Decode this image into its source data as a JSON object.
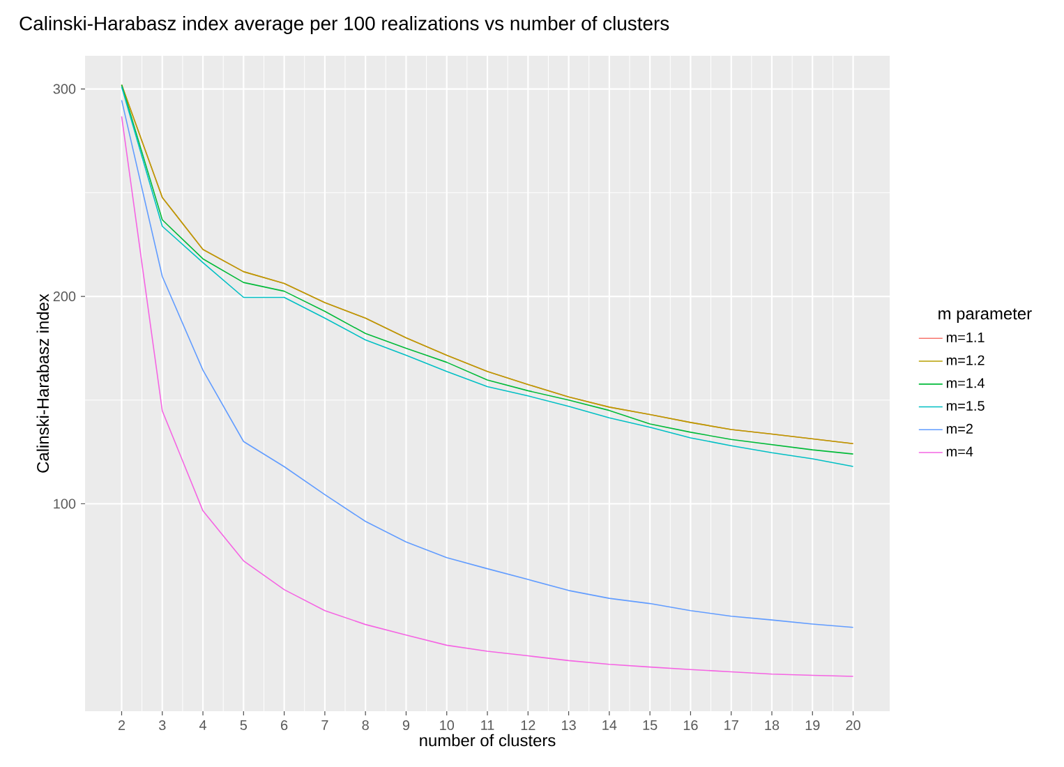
{
  "chart_data": {
    "type": "line",
    "title": "Calinski-Harabasz index average per 100 realizations vs number of clusters",
    "xlabel": "number of clusters",
    "ylabel": "Calinski-Harabasz index",
    "legend_title": "m parameter",
    "x": [
      2,
      3,
      4,
      5,
      6,
      7,
      8,
      9,
      10,
      11,
      12,
      13,
      14,
      15,
      16,
      17,
      18,
      19,
      20
    ],
    "series": [
      {
        "name": "m=1.1",
        "color": "#f8766d",
        "values": [
          302,
          247.7,
          222.6,
          211.9,
          206.2,
          197,
          189.5,
          180,
          171.6,
          163.8,
          157.5,
          151.5,
          146.6,
          143,
          139.2,
          135.8,
          133.6,
          131.3,
          129
        ]
      },
      {
        "name": "m=1.2",
        "color": "#b79f00",
        "values": [
          302,
          247.7,
          222.6,
          211.9,
          206.2,
          197,
          189.5,
          180,
          171.6,
          163.8,
          157.5,
          151.5,
          146.6,
          143,
          139.2,
          135.8,
          133.6,
          131.3,
          129
        ]
      },
      {
        "name": "m=1.4",
        "color": "#00ba38",
        "values": [
          302,
          236.9,
          218.1,
          206.7,
          202.5,
          192.8,
          182.1,
          175,
          168.2,
          159.7,
          154.5,
          150,
          145,
          138.5,
          134.5,
          131,
          128.5,
          126,
          124
        ]
      },
      {
        "name": "m=1.5",
        "color": "#00bfc4",
        "values": [
          301,
          233.8,
          216.3,
          199.5,
          199.5,
          189.5,
          179,
          171.6,
          163.8,
          156.5,
          152,
          147,
          141.4,
          136.9,
          131.8,
          128,
          124.6,
          121.7,
          118
        ]
      },
      {
        "name": "m=2",
        "color": "#619cff",
        "values": [
          294.6,
          209.6,
          164.4,
          130,
          117.9,
          104.4,
          91.5,
          81.6,
          74,
          68.7,
          63.5,
          58.2,
          54.4,
          51.9,
          48.5,
          45.8,
          44,
          42,
          40.4
        ]
      },
      {
        "name": "m=4",
        "color": "#f564e3",
        "values": [
          286.8,
          144.8,
          96.6,
          72.5,
          58.6,
          48.5,
          41.8,
          36.7,
          31.8,
          28.9,
          26.7,
          24.4,
          22.6,
          21.3,
          20.1,
          19,
          17.9,
          17.3,
          16.8
        ]
      }
    ],
    "xlim": [
      1.1,
      20.9
    ],
    "ylim": [
      0,
      316
    ],
    "xticks": [
      2,
      3,
      4,
      5,
      6,
      7,
      8,
      9,
      10,
      11,
      12,
      13,
      14,
      15,
      16,
      17,
      18,
      19,
      20
    ],
    "yticks": [
      100,
      200,
      300
    ],
    "grid": true,
    "legend": "right",
    "marker": "none",
    "line_style": "solid"
  }
}
